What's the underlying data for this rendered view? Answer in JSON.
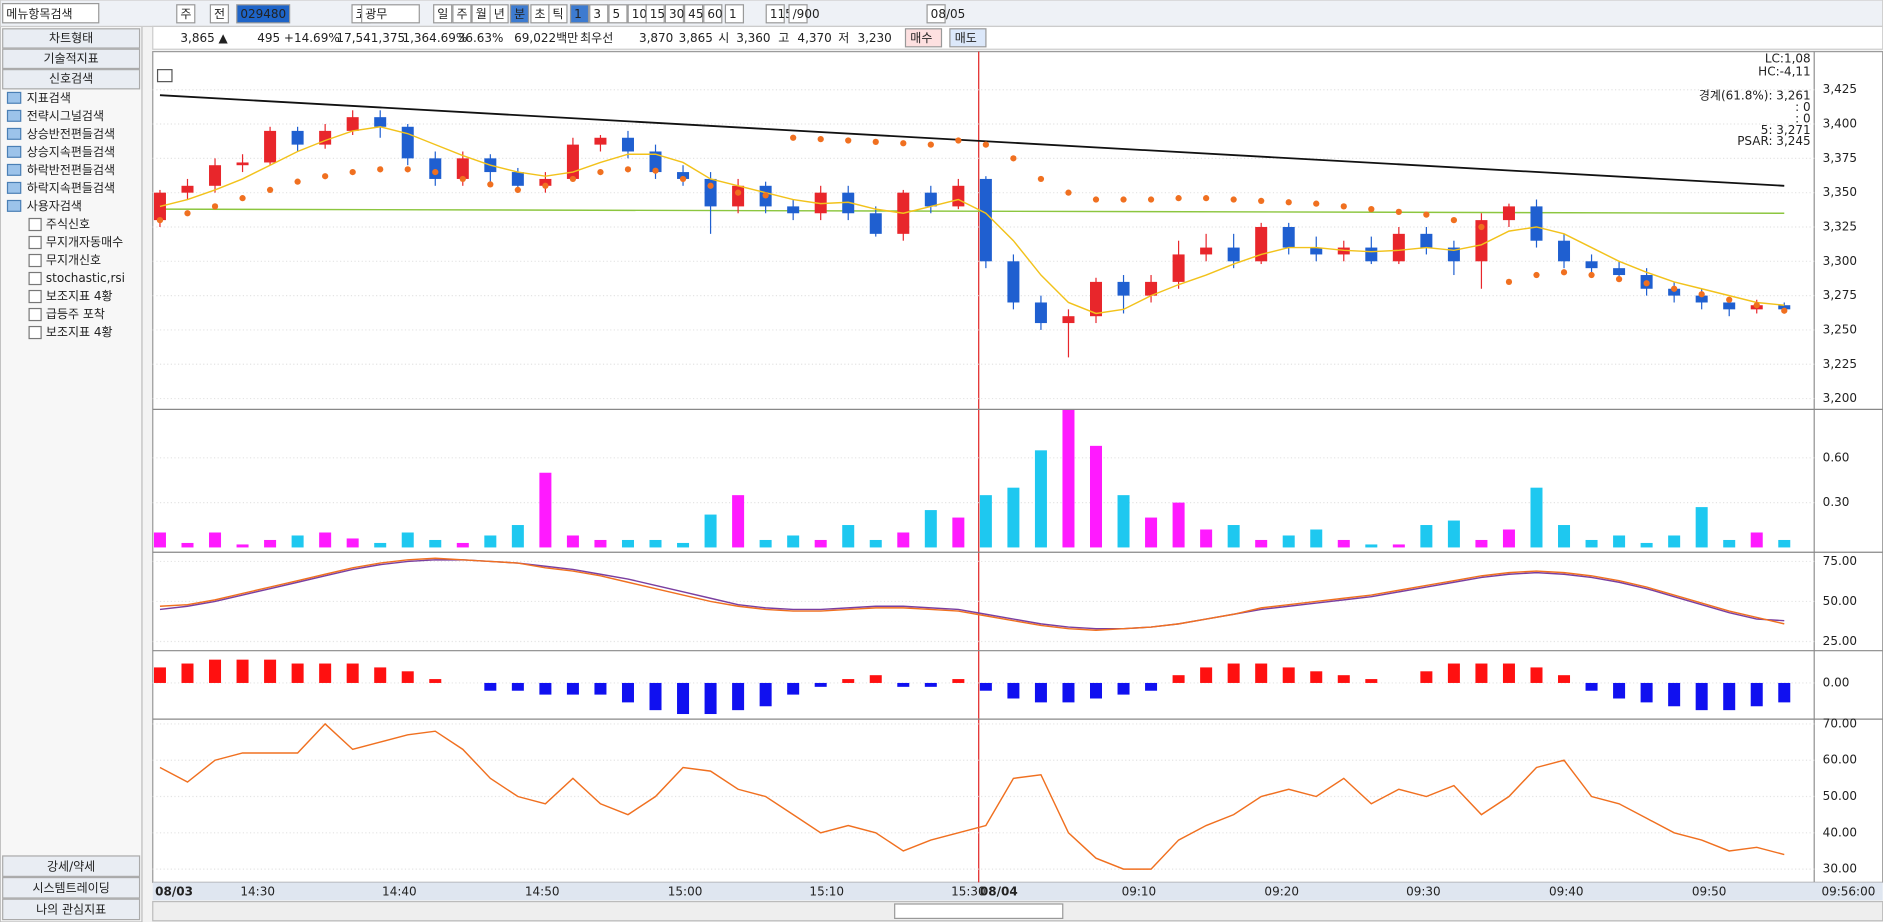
{
  "sidebar": {
    "search": "메뉴항목검색",
    "tabs": [
      "차트형태",
      "기술적지표",
      "신호검색"
    ],
    "tree": [
      "지표검색",
      "전략시그널검색",
      "상승반전편들검색",
      "상승지속편들검색",
      "하락반전편들검색",
      "하락지속편들검색",
      "사용자검색"
    ],
    "user_items": [
      "주식신호",
      "무지개자동매수",
      "무지개신호",
      "stochastic,rsi",
      "보조지표 4황",
      "급등주 포착",
      "보조지표 4황"
    ],
    "bottom": [
      "강세/약세",
      "시스템트레이딩",
      "나의 관심지표"
    ]
  },
  "toolbar": [
    "주",
    "전",
    "029480",
    "코",
    "광무",
    "일",
    "주",
    "월",
    "년",
    "분",
    "초",
    "틱",
    "1",
    "3",
    "5",
    "10",
    "15",
    "30",
    "45",
    "60",
    "1",
    "115",
    "/900",
    "08/05"
  ],
  "quote": [
    "3,865 ▲",
    "495 +14.69%",
    "17,541,375",
    "1,364.69%",
    "36.63%",
    "69,022백만",
    "최우선",
    "3,870",
    "3,865",
    "시",
    "3,360",
    "고",
    "4,370",
    "저",
    "3,230",
    "매수",
    "매도"
  ],
  "chart": {
    "type": "candlestick",
    "up_color": "#e8262b",
    "down_color": "#1f5fd0",
    "candles": [
      [
        3330,
        3350,
        3352,
        3325
      ],
      [
        3350,
        3355,
        3360,
        3345
      ],
      [
        3355,
        3370,
        3375,
        3350
      ],
      [
        3370,
        3372,
        3378,
        3365
      ],
      [
        3372,
        3395,
        3398,
        3370
      ],
      [
        3395,
        3385,
        3398,
        3380
      ],
      [
        3385,
        3395,
        3400,
        3382
      ],
      [
        3395,
        3405,
        3410,
        3392
      ],
      [
        3405,
        3398,
        3410,
        3390
      ],
      [
        3398,
        3375,
        3400,
        3370
      ],
      [
        3375,
        3360,
        3380,
        3355
      ],
      [
        3360,
        3375,
        3380,
        3355
      ],
      [
        3375,
        3365,
        3378,
        3355
      ],
      [
        3365,
        3355,
        3368,
        3350
      ],
      [
        3355,
        3360,
        3365,
        3350
      ],
      [
        3360,
        3385,
        3390,
        3358
      ],
      [
        3385,
        3390,
        3392,
        3380
      ],
      [
        3390,
        3380,
        3395,
        3375
      ],
      [
        3380,
        3365,
        3385,
        3360
      ],
      [
        3365,
        3360,
        3370,
        3355
      ],
      [
        3360,
        3340,
        3365,
        3320
      ],
      [
        3340,
        3355,
        3360,
        3335
      ],
      [
        3355,
        3340,
        3358,
        3335
      ],
      [
        3340,
        3335,
        3345,
        3330
      ],
      [
        3335,
        3350,
        3355,
        3330
      ],
      [
        3350,
        3335,
        3355,
        3330
      ],
      [
        3335,
        3320,
        3340,
        3318
      ],
      [
        3320,
        3350,
        3352,
        3315
      ],
      [
        3350,
        3340,
        3355,
        3335
      ],
      [
        3340,
        3355,
        3360,
        3338
      ],
      [
        3360,
        3300,
        3362,
        3295
      ],
      [
        3300,
        3270,
        3305,
        3265
      ],
      [
        3270,
        3255,
        3275,
        3250
      ],
      [
        3255,
        3260,
        3265,
        3230
      ],
      [
        3260,
        3285,
        3288,
        3255
      ],
      [
        3285,
        3275,
        3290,
        3262
      ],
      [
        3275,
        3285,
        3290,
        3270
      ],
      [
        3285,
        3305,
        3315,
        3280
      ],
      [
        3305,
        3310,
        3320,
        3300
      ],
      [
        3310,
        3300,
        3320,
        3295
      ],
      [
        3300,
        3325,
        3328,
        3298
      ],
      [
        3325,
        3310,
        3328,
        3305
      ],
      [
        3310,
        3305,
        3318,
        3300
      ],
      [
        3305,
        3310,
        3315,
        3300
      ],
      [
        3310,
        3300,
        3318,
        3298
      ],
      [
        3300,
        3320,
        3325,
        3298
      ],
      [
        3320,
        3310,
        3325,
        3305
      ],
      [
        3310,
        3300,
        3315,
        3290
      ],
      [
        3300,
        3330,
        3335,
        3280
      ],
      [
        3330,
        3340,
        3342,
        3325
      ],
      [
        3340,
        3315,
        3345,
        3310
      ],
      [
        3315,
        3300,
        3320,
        3295
      ],
      [
        3300,
        3295,
        3305,
        3290
      ],
      [
        3295,
        3290,
        3300,
        3285
      ],
      [
        3290,
        3280,
        3295,
        3275
      ],
      [
        3280,
        3275,
        3285,
        3270
      ],
      [
        3275,
        3270,
        3280,
        3265
      ],
      [
        3270,
        3265,
        3272,
        3260
      ],
      [
        3265,
        3268,
        3272,
        3262
      ],
      [
        3268,
        3265,
        3270,
        3262
      ]
    ],
    "ma5": {
      "color": "#f2c21b",
      "values": [
        3340,
        3345,
        3352,
        3360,
        3370,
        3380,
        3388,
        3395,
        3398,
        3393,
        3385,
        3377,
        3370,
        3365,
        3362,
        3365,
        3372,
        3378,
        3378,
        3372,
        3360,
        3355,
        3350,
        3345,
        3342,
        3343,
        3338,
        3335,
        3340,
        3345,
        3335,
        3315,
        3290,
        3270,
        3262,
        3265,
        3275,
        3283,
        3290,
        3298,
        3305,
        3310,
        3310,
        3308,
        3307,
        3308,
        3310,
        3308,
        3312,
        3322,
        3325,
        3320,
        3310,
        3300,
        3292,
        3285,
        3280,
        3275,
        3270,
        3268
      ]
    },
    "psar": {
      "color": "#f07020",
      "values": [
        3330,
        3335,
        3340,
        3346,
        3352,
        3358,
        3362,
        3365,
        3367,
        3367,
        3365,
        3360,
        3356,
        3352,
        3355,
        3360,
        3365,
        3367,
        3366,
        3360,
        3355,
        3350,
        3348,
        3390,
        3389,
        3388,
        3387,
        3386,
        3385,
        3388,
        3385,
        3375,
        3360,
        3350,
        3345,
        3345,
        3345,
        3346,
        3346,
        3345,
        3344,
        3343,
        3342,
        3340,
        3338,
        3336,
        3334,
        3330,
        3325,
        3285,
        3290,
        3292,
        3290,
        3287,
        3284,
        3280,
        3276,
        3272,
        3268,
        3264
      ]
    },
    "trend": {
      "color": "#111111",
      "values": [
        3421,
        3355
      ]
    },
    "base": {
      "color": "#8cc63f",
      "values": [
        3338,
        3335
      ]
    },
    "ylim": [
      3193,
      3451
    ],
    "yticks": [
      {
        "value": 3200,
        "label": "3,200"
      },
      {
        "value": 3225,
        "label": "3,225"
      },
      {
        "value": 3250,
        "label": "3,250"
      },
      {
        "value": 3275,
        "label": "3,275"
      },
      {
        "value": 3300,
        "label": "3,300"
      },
      {
        "value": 3325,
        "label": "3,325"
      },
      {
        "value": 3350,
        "label": "3,350"
      },
      {
        "value": 3375,
        "label": "3,375"
      },
      {
        "value": 3400,
        "label": "3,400"
      },
      {
        "value": 3425,
        "label": "3,425"
      }
    ],
    "overlay": [
      {
        "text": "LC:1,08",
        "color": "#e8262b"
      },
      {
        "text": "HC:-4,11",
        "color": "#1f5fd0"
      },
      {
        "text": "경계(61.8%): 3,261",
        "color": "#f07020"
      },
      {
        "text": ": 0",
        "color": "#e020e0"
      },
      {
        "text": ": 0",
        "color": "#e8262b"
      },
      {
        "text": "5: 3,271",
        "color": "#f5c590"
      },
      {
        "text": "PSAR: 3,245",
        "color": "#aaaaaa"
      }
    ],
    "volume": {
      "up_color": "#ff1aff",
      "down_color": "#1ec8f0",
      "ylim": [
        0,
        0.9
      ],
      "yticks": [
        {
          "value": 0.3,
          "label": "0.30"
        },
        {
          "value": 0.6,
          "label": "0.60"
        }
      ],
      "values": [
        0.1,
        0.03,
        0.1,
        0.02,
        0.05,
        0.08,
        0.1,
        0.06,
        0.03,
        0.1,
        0.05,
        0.03,
        0.08,
        0.15,
        0.5,
        0.08,
        0.05,
        0.05,
        0.05,
        0.03,
        0.22,
        0.35,
        0.05,
        0.08,
        0.05,
        0.15,
        0.05,
        0.1,
        0.25,
        0.2,
        0.35,
        0.4,
        0.65,
        0.92,
        0.68,
        0.35,
        0.2,
        0.3,
        0.12,
        0.15,
        0.05,
        0.08,
        0.12,
        0.05,
        0.02,
        0.02,
        0.15,
        0.18,
        0.05,
        0.12,
        0.4,
        0.15,
        0.05,
        0.08,
        0.03,
        0.08,
        0.27,
        0.05,
        0.1,
        0.05
      ]
    },
    "osc": {
      "ylim": [
        20,
        80
      ],
      "yticks": [
        {
          "value": 25,
          "label": "25.00"
        },
        {
          "value": 50,
          "label": "50.00"
        },
        {
          "value": 75,
          "label": "75.00"
        }
      ],
      "series": [
        {
          "color": "#7a3fa0",
          "values": [
            45,
            47,
            50,
            54,
            58,
            62,
            66,
            70,
            73,
            75,
            76,
            76,
            75,
            74,
            72,
            70,
            67,
            64,
            60,
            56,
            52,
            48,
            46,
            45,
            45,
            46,
            47,
            47,
            46,
            45,
            42,
            39,
            36,
            34,
            33,
            33,
            34,
            36,
            39,
            42,
            45,
            47,
            49,
            51,
            53,
            56,
            59,
            62,
            65,
            67,
            68,
            67,
            65,
            62,
            58,
            53,
            48,
            43,
            39,
            38
          ]
        },
        {
          "color": "#f07020",
          "values": [
            47,
            48,
            51,
            55,
            59,
            63,
            67,
            71,
            74,
            76,
            77,
            76,
            75,
            74,
            71,
            69,
            66,
            62,
            58,
            54,
            50,
            47,
            45,
            44,
            44,
            45,
            46,
            46,
            45,
            44,
            41,
            38,
            35,
            33,
            32,
            33,
            34,
            36,
            39,
            42,
            46,
            48,
            50,
            52,
            54,
            57,
            60,
            63,
            66,
            68,
            69,
            68,
            66,
            63,
            59,
            54,
            49,
            44,
            40,
            36
          ]
        }
      ]
    },
    "hist": {
      "up_color": "#ff1010",
      "down_color": "#1010f0",
      "ylim": [
        -9,
        8
      ],
      "yticks": [
        {
          "value": 0,
          "label": "0.00"
        }
      ],
      "values": [
        4,
        5,
        6,
        6,
        6,
        5,
        5,
        5,
        4,
        3,
        1,
        0,
        -2,
        -2,
        -3,
        -3,
        -3,
        -5,
        -7,
        -8,
        -8,
        -7,
        -6,
        -3,
        -1,
        1,
        2,
        -1,
        -1,
        1,
        -2,
        -4,
        -5,
        -5,
        -4,
        -3,
        -2,
        2,
        4,
        5,
        5,
        4,
        3,
        2,
        1,
        0,
        3,
        5,
        5,
        5,
        4,
        2,
        -2,
        -4,
        -5,
        -6,
        -7,
        -7,
        -6,
        -5
      ]
    },
    "line5": {
      "color": "#f07020",
      "ylim": [
        27,
        71
      ],
      "yticks": [
        {
          "value": 30,
          "label": "30.00"
        },
        {
          "value": 40,
          "label": "40.00"
        },
        {
          "value": 50,
          "label": "50.00"
        },
        {
          "value": 60,
          "label": "60.00"
        },
        {
          "value": 70,
          "label": "70.00"
        }
      ],
      "values": [
        58,
        54,
        60,
        62,
        62,
        62,
        70,
        63,
        65,
        67,
        68,
        63,
        55,
        50,
        48,
        55,
        48,
        45,
        50,
        58,
        57,
        52,
        50,
        45,
        40,
        42,
        40,
        35,
        38,
        40,
        42,
        55,
        56,
        40,
        33,
        30,
        30,
        38,
        42,
        45,
        50,
        52,
        50,
        55,
        48,
        52,
        50,
        53,
        45,
        50,
        58,
        60,
        50,
        48,
        44,
        40,
        38,
        35,
        36,
        34
      ]
    },
    "x_labels": [
      "08/03",
      "14:30",
      "14:40",
      "14:50",
      "15:00",
      "15:10",
      "15:30",
      "08/04",
      "09:10",
      "09:20",
      "09:30",
      "09:40",
      "09:50",
      "09:56:00"
    ]
  }
}
